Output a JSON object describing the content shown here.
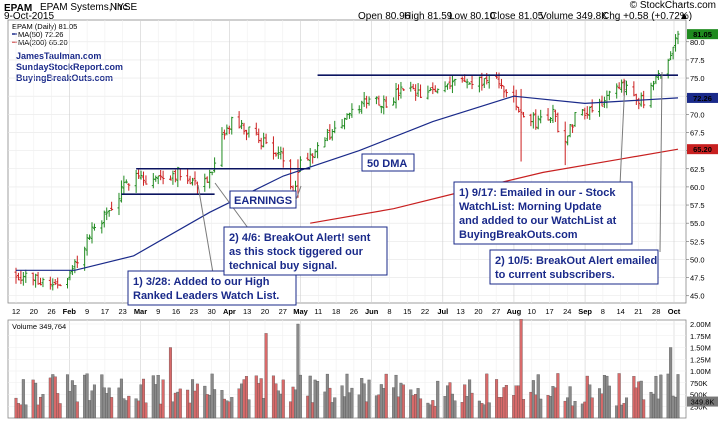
{
  "header": {
    "ticker": "EPAM",
    "company": "EPAM Systems, Inc.",
    "exchange": "NYSE",
    "date": "9-Oct-2015",
    "copyright": "© StockCharts.com",
    "open": "Open 80.96",
    "high": "High 81.59",
    "low": "Low 80.10",
    "close": "Close 81.05",
    "volume": "Volume 349.8K",
    "change": "Chg +0.58 (+0.72%)",
    "arrow": "▲"
  },
  "legend": {
    "price": "EPAM (Daily) 81.05",
    "ma50": "MA(50) 72.26",
    "ma200": "MA(200) 65.20"
  },
  "sites": [
    "JamesTaulman.com",
    "SundayStockReport.com",
    "BuyingBreakOuts.com"
  ],
  "annotations": {
    "a1": [
      "1) 3/28: Added to our High",
      "Ranked Leaders Watch List."
    ],
    "a2": [
      "2) 4/6: BreakOut Alert! sent",
      "as this stock tiggered our",
      "technical buy signal."
    ],
    "a3": [
      "1) 9/17: Emailed in our - Stock",
      "WatchList: Morning Update",
      "and added to our WatchList at",
      "BuyingBreakOuts.com"
    ],
    "a4": [
      "2) 10/5: BreakOut Alert emailed",
      "to current subscribers."
    ],
    "earnings": "EARNINGS",
    "dma": "50 DMA"
  },
  "colors": {
    "up": "#1f8a1f",
    "down": "#cc1f1f",
    "ma50": "#1a2a8a",
    "ma200": "#c82020",
    "annotation": "#1a2a8a",
    "vol_up": "#8a8a8a",
    "vol_down": "#d86a6a"
  },
  "volume_label": "Volume 349,764",
  "chart_data": {
    "type": "ohlc",
    "title": "EPAM EPAM Systems, Inc. NYSE",
    "ylim": [
      44,
      83
    ],
    "price_ticks": [
      45.0,
      47.5,
      50.0,
      52.5,
      55.0,
      57.5,
      60.0,
      62.5,
      65.0,
      67.5,
      70.0,
      72.5,
      75.0,
      77.5,
      80.0
    ],
    "price_ticks_labels": [
      "45.0",
      "47.5",
      "50.0",
      "52.5",
      "55.0",
      "57.5",
      "60.0",
      "62.5",
      "65.0",
      "67.5",
      "70.0",
      "72.5",
      "75.0",
      "77.5",
      "80.0"
    ],
    "last_price_tags": [
      {
        "label": "81.05",
        "value": 81.05,
        "color": "#1f8a1f"
      },
      {
        "label": "72.26",
        "value": 72.26,
        "color": "#1a2a8a"
      },
      {
        "label": "65.20",
        "value": 65.2,
        "color": "#c82020"
      }
    ],
    "x_labels": [
      "12",
      "20",
      "26",
      "Feb",
      "9",
      "17",
      "23",
      "Mar",
      "9",
      "16",
      "23",
      "30",
      "Apr",
      "13",
      "20",
      "27",
      "May",
      "11",
      "18",
      "26",
      "Jun",
      "8",
      "15",
      "22",
      "Jul",
      "13",
      "20",
      "27",
      "Aug",
      "10",
      "17",
      "24",
      "Sep",
      "8",
      "14",
      "21",
      "28",
      "Oct"
    ],
    "close_keypoints": [
      {
        "date": "2015-01-12",
        "close": 48.0
      },
      {
        "date": "2015-01-26",
        "close": 46.8
      },
      {
        "date": "2015-02-02",
        "close": 47.0
      },
      {
        "date": "2015-02-06",
        "close": 50.0
      },
      {
        "date": "2015-02-13",
        "close": 54.5
      },
      {
        "date": "2015-02-20",
        "close": 57.0
      },
      {
        "date": "2015-02-27",
        "close": 61.0
      },
      {
        "date": "2015-03-02",
        "close": 62.5
      },
      {
        "date": "2015-03-06",
        "close": 60.5
      },
      {
        "date": "2015-03-13",
        "close": 61.5
      },
      {
        "date": "2015-03-20",
        "close": 62.0
      },
      {
        "date": "2015-03-27",
        "close": 60.5
      },
      {
        "date": "2015-04-02",
        "close": 61.5
      },
      {
        "date": "2015-04-06",
        "close": 66.5
      },
      {
        "date": "2015-04-10",
        "close": 69.0
      },
      {
        "date": "2015-04-17",
        "close": 67.5
      },
      {
        "date": "2015-04-24",
        "close": 66.0
      },
      {
        "date": "2015-05-01",
        "close": 63.8
      },
      {
        "date": "2015-05-05",
        "close": 59.5
      },
      {
        "date": "2015-05-08",
        "close": 63.5
      },
      {
        "date": "2015-05-15",
        "close": 65.5
      },
      {
        "date": "2015-05-22",
        "close": 68.0
      },
      {
        "date": "2015-05-29",
        "close": 70.0
      },
      {
        "date": "2015-06-05",
        "close": 72.5
      },
      {
        "date": "2015-06-12",
        "close": 71.5
      },
      {
        "date": "2015-06-19",
        "close": 73.5
      },
      {
        "date": "2015-06-26",
        "close": 72.5
      },
      {
        "date": "2015-07-03",
        "close": 73.5
      },
      {
        "date": "2015-07-10",
        "close": 75.0
      },
      {
        "date": "2015-07-17",
        "close": 74.0
      },
      {
        "date": "2015-07-24",
        "close": 75.0
      },
      {
        "date": "2015-07-31",
        "close": 73.5
      },
      {
        "date": "2015-08-06",
        "close": 70.0
      },
      {
        "date": "2015-08-12",
        "close": 69.0
      },
      {
        "date": "2015-08-19",
        "close": 70.0
      },
      {
        "date": "2015-08-24",
        "close": 66.0
      },
      {
        "date": "2015-08-28",
        "close": 70.0
      },
      {
        "date": "2015-09-04",
        "close": 71.0
      },
      {
        "date": "2015-09-11",
        "close": 72.5
      },
      {
        "date": "2015-09-18",
        "close": 74.0
      },
      {
        "date": "2015-09-25",
        "close": 71.5
      },
      {
        "date": "2015-09-30",
        "close": 74.5
      },
      {
        "date": "2015-10-05",
        "close": 77.5
      },
      {
        "date": "2015-10-09",
        "close": 81.05
      }
    ],
    "resistance_levels": [
      {
        "value": 62.5,
        "from": "2015-03-02",
        "to": "2015-05-12"
      },
      {
        "value": 59.0,
        "from": "2015-02-24",
        "to": "2015-04-03"
      },
      {
        "value": 75.4,
        "from": "2015-05-15",
        "to": "2015-10-09"
      }
    ],
    "ma50_keypoints": [
      {
        "date": "2015-01-12",
        "value": 48.5
      },
      {
        "date": "2015-02-05",
        "value": 48.5
      },
      {
        "date": "2015-03-01",
        "value": 50.5
      },
      {
        "date": "2015-04-01",
        "value": 56.5
      },
      {
        "date": "2015-05-01",
        "value": 61.5
      },
      {
        "date": "2015-06-01",
        "value": 65.0
      },
      {
        "date": "2015-07-01",
        "value": 69.0
      },
      {
        "date": "2015-08-03",
        "value": 72.5
      },
      {
        "date": "2015-09-01",
        "value": 71.5
      },
      {
        "date": "2015-10-09",
        "value": 72.26
      }
    ],
    "ma200_keypoints": [
      {
        "date": "2015-05-12",
        "value": 55.0
      },
      {
        "date": "2015-06-15",
        "value": 57.0
      },
      {
        "date": "2015-07-15",
        "value": 59.5
      },
      {
        "date": "2015-08-15",
        "value": 62.0
      },
      {
        "date": "2015-09-15",
        "value": 63.8
      },
      {
        "date": "2015-10-09",
        "value": 65.2
      }
    ],
    "volume_ticks_labels": [
      "250K",
      "500K",
      "750K",
      "1.00M",
      "1.25M",
      "1.50M",
      "1.75M",
      "2.00M"
    ],
    "volume_ylim": [
      0,
      2000000
    ],
    "volume_last": "349.8K",
    "volume_spikes": [
      {
        "date": "2015-05-07",
        "value": 2000000
      },
      {
        "date": "2015-04-24",
        "value": 1800000
      },
      {
        "date": "2015-08-06",
        "value": 2200000
      },
      {
        "date": "2015-10-06",
        "value": 1500000
      },
      {
        "date": "2015-03-16",
        "value": 1500000
      }
    ]
  }
}
